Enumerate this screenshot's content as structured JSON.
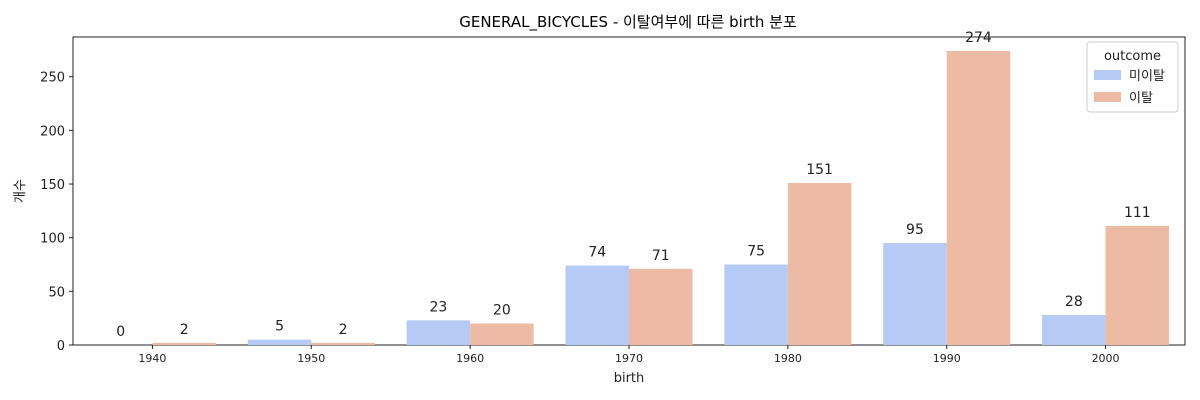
{
  "chart_data": {
    "type": "bar",
    "title": "GENERAL_BICYCLES - 이탈여부에 따른 birth 분포",
    "xlabel": "birth",
    "ylabel": "개수",
    "categories": [
      "1940",
      "1950",
      "1960",
      "1970",
      "1980",
      "1990",
      "2000"
    ],
    "series": [
      {
        "name": "미이탈",
        "color": "#b5cbf5",
        "values": [
          0,
          5,
          23,
          74,
          75,
          95,
          28
        ]
      },
      {
        "name": "이탈",
        "color": "#edbba4",
        "values": [
          2,
          2,
          20,
          71,
          151,
          274,
          111
        ]
      }
    ],
    "ylim": [
      0,
      287
    ],
    "yticks": [
      0,
      50,
      100,
      150,
      200,
      250
    ],
    "grid": false,
    "legend": {
      "title": "outcome",
      "placement": "top-right"
    }
  }
}
